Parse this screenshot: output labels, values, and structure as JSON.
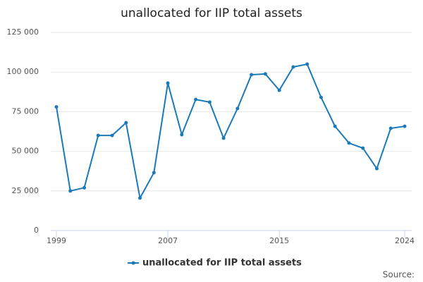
{
  "chart_data": {
    "type": "line",
    "title": "unallocated for IIP total assets",
    "x": [
      1999,
      2000,
      2001,
      2002,
      2003,
      2004,
      2005,
      2006,
      2007,
      2008,
      2009,
      2010,
      2011,
      2012,
      2013,
      2014,
      2015,
      2016,
      2017,
      2018,
      2019,
      2020,
      2021,
      2022,
      2023,
      2024
    ],
    "series": [
      {
        "name": "unallocated for IIP total assets",
        "color": "#1a7ab9",
        "values": [
          78000,
          25000,
          27000,
          60000,
          60000,
          68000,
          20500,
          36500,
          93000,
          60500,
          82700,
          81000,
          58300,
          77000,
          98300,
          98800,
          88500,
          103200,
          105000,
          84000,
          65800,
          55200,
          52000,
          39100,
          64500,
          65800
        ]
      }
    ],
    "xlim": [
      1999,
      2024
    ],
    "xticks": [
      1999,
      2007,
      2015,
      2024
    ],
    "ylim": [
      0,
      125000
    ],
    "yticks": [
      0,
      {
        "value": 25000,
        "label": "25 000"
      },
      {
        "value": 50000,
        "label": "50 000"
      },
      {
        "value": 75000,
        "label": "75 000"
      },
      {
        "value": 100000,
        "label": "100 000"
      },
      {
        "value": 125000,
        "label": "125 000"
      }
    ],
    "grid": true,
    "legend": "bottom",
    "source": "Source:"
  }
}
